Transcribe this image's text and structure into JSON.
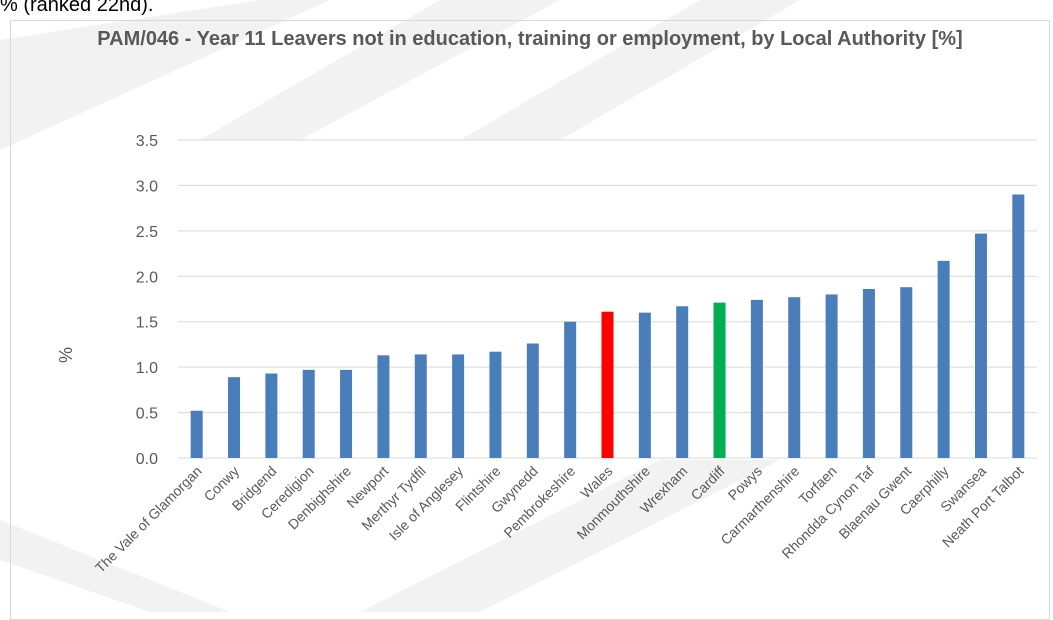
{
  "page": {
    "top_text": "% (ranked 22nd)."
  },
  "colors": {
    "default_bar": "#4a7ebb",
    "wales_bar": "#ff0000",
    "cardiff_bar": "#00b050",
    "gridline": "#d9d9d9",
    "text": "#595959",
    "watermark": "#f2f2f2"
  },
  "chart_data": {
    "type": "bar",
    "title": "PAM/046 - Year 11 Leavers not in education, training or employment, by Local Authority [%]",
    "xlabel": "",
    "ylabel": "%",
    "ylim": [
      0,
      3.5
    ],
    "y_ticks": [
      "0.0",
      "0.5",
      "1.0",
      "1.5",
      "2.0",
      "2.5",
      "3.0",
      "3.5"
    ],
    "grid": true,
    "legend": "none",
    "categories": [
      "The Vale of Glamorgan",
      "Conwy",
      "Bridgend",
      "Ceredigion",
      "Denbighshire",
      "Newport",
      "Merthyr Tydfil",
      "Isle of Anglesey",
      "Flintshire",
      "Gwynedd",
      "Pembrokeshire",
      "Wales",
      "Monmouthshire",
      "Wrexham",
      "Cardiff",
      "Powys",
      "Carmarthenshire",
      "Torfaen",
      "Rhondda Cynon Taf",
      "Blaenau Gwent",
      "Caerphilly",
      "Swansea",
      "Neath Port Talbot"
    ],
    "values": [
      0.52,
      0.89,
      0.93,
      0.97,
      0.97,
      1.13,
      1.14,
      1.14,
      1.17,
      1.26,
      1.5,
      1.61,
      1.6,
      1.67,
      1.71,
      1.74,
      1.77,
      1.8,
      1.86,
      1.88,
      2.17,
      2.47,
      2.9
    ],
    "highlights": {
      "Wales": "wales_bar",
      "Cardiff": "cardiff_bar"
    }
  }
}
